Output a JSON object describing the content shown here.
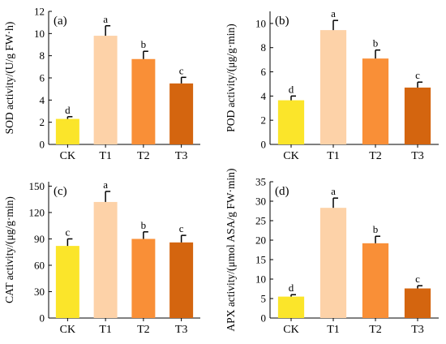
{
  "colors": [
    "#fbe52a",
    "#fdd2a8",
    "#f98f37",
    "#d4650f"
  ],
  "chart_data": [
    {
      "type": "bar",
      "panel_label": "(a)",
      "ylabel": "SOD activity/(U/g FW·h)",
      "categories": [
        "CK",
        "T1",
        "T2",
        "T3"
      ],
      "values": [
        2.3,
        9.8,
        7.7,
        5.5
      ],
      "errors": [
        0.2,
        0.9,
        0.7,
        0.55
      ],
      "letters": [
        "d",
        "a",
        "b",
        "c"
      ],
      "ylim": [
        0,
        12
      ],
      "yticks": [
        0,
        2,
        4,
        6,
        8,
        10,
        12
      ],
      "ytick_labels": [
        "0",
        "2",
        "4",
        "6",
        "8",
        "10",
        "12"
      ],
      "grid": false
    },
    {
      "type": "bar",
      "panel_label": "(b)",
      "ylabel": "POD activity/(μg/g·min)",
      "categories": [
        "CK",
        "T1",
        "T2",
        "T3"
      ],
      "values": [
        3.65,
        9.45,
        7.1,
        4.7
      ],
      "errors": [
        0.35,
        0.8,
        0.7,
        0.45
      ],
      "letters": [
        "d",
        "a",
        "b",
        "c"
      ],
      "ylim": [
        0,
        11
      ],
      "yticks": [
        0,
        2,
        4,
        6,
        8,
        10
      ],
      "ytick_labels": [
        "0",
        "2",
        "4",
        "6",
        "8",
        "10"
      ],
      "grid": false
    },
    {
      "type": "bar",
      "panel_label": "(c)",
      "ylabel": "CAT activity/(μg/g·min)",
      "categories": [
        "CK",
        "T1",
        "T2",
        "T3"
      ],
      "values": [
        82,
        132,
        90,
        86
      ],
      "errors": [
        8,
        12,
        8,
        8
      ],
      "letters": [
        "c",
        "a",
        "b",
        "c"
      ],
      "ylim": [
        0,
        155
      ],
      "yticks": [
        0,
        30,
        60,
        90,
        120,
        150
      ],
      "ytick_labels": [
        "0",
        "30",
        "60",
        "90",
        "120",
        "150"
      ],
      "grid": false
    },
    {
      "type": "bar",
      "panel_label": "(d)",
      "ylabel": "APX activity/(μmol ASA/g FW·min)",
      "categories": [
        "CK",
        "T1",
        "T2",
        "T3"
      ],
      "values": [
        5.5,
        28.3,
        19.2,
        7.6
      ],
      "errors": [
        0.5,
        2.5,
        1.8,
        0.7
      ],
      "letters": [
        "d",
        "a",
        "b",
        "c"
      ],
      "ylim": [
        0,
        35
      ],
      "yticks": [
        0,
        5,
        10,
        15,
        20,
        25,
        30,
        35
      ],
      "ytick_labels": [
        "0",
        "5",
        "10",
        "15",
        "20",
        "25",
        "30",
        "35"
      ],
      "grid": false
    }
  ]
}
